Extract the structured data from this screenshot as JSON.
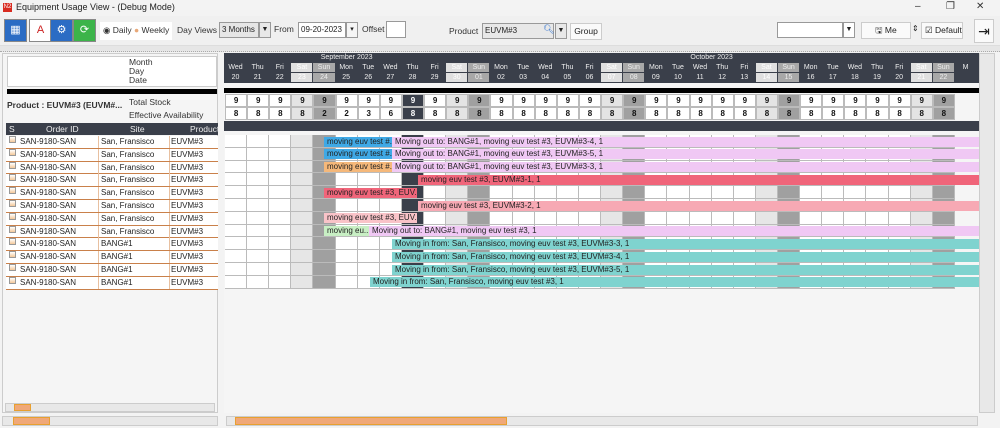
{
  "window": {
    "title": "Equipment Usage View - (Debug Mode)",
    "app_icon": "N2",
    "minimize": "–",
    "restore": "❐",
    "close": "✕"
  },
  "toolbar": {
    "icons": [
      "calendar-grid-icon",
      "presentation-icon",
      "settings-money-icon",
      "refresh-icon"
    ],
    "view_mode": {
      "options": [
        "Daily",
        "Weekly"
      ],
      "selected": "Daily"
    },
    "day_views_label": "Day Views",
    "day_views_value": "3 Months",
    "from_label": "From",
    "from_value": "09-20-2023",
    "offset_label": "Offset",
    "offset_value": "",
    "product_label": "Product",
    "product_value": "EUVM#3",
    "group_label": "Group",
    "preset_value": "",
    "me_label": "Me",
    "default_label": "Default",
    "default_checked": true
  },
  "header_labels": {
    "month": "Month",
    "day": "Day",
    "date": "Date"
  },
  "product_info": {
    "label": "Product : EUVM#3 (EUVM#...",
    "total_stock": "Total Stock",
    "effective_availability": "Effective Availability"
  },
  "table": {
    "columns": [
      "S",
      "Order ID",
      "Site",
      "Product"
    ],
    "rows": [
      [
        "SAN-9180-SAN",
        "San, Fransisco",
        "EUVM#3"
      ],
      [
        "SAN-9180-SAN",
        "San, Fransisco",
        "EUVM#3"
      ],
      [
        "SAN-9180-SAN",
        "San, Fransisco",
        "EUVM#3"
      ],
      [
        "SAN-9180-SAN",
        "San, Fransisco",
        "EUVM#3"
      ],
      [
        "SAN-9180-SAN",
        "San, Fransisco",
        "EUVM#3"
      ],
      [
        "SAN-9180-SAN",
        "San, Fransisco",
        "EUVM#3"
      ],
      [
        "SAN-9180-SAN",
        "San, Fransisco",
        "EUVM#3"
      ],
      [
        "SAN-9180-SAN",
        "San, Fransisco",
        "EUVM#3"
      ],
      [
        "SAN-9180-SAN",
        "BANG#1",
        "EUVM#3"
      ],
      [
        "SAN-9180-SAN",
        "BANG#1",
        "EUVM#3"
      ],
      [
        "SAN-9180-SAN",
        "BANG#1",
        "EUVM#3"
      ],
      [
        "SAN-9180-SAN",
        "BANG#1",
        "EUVM#3"
      ]
    ]
  },
  "calendar": {
    "months": [
      "September 2023",
      "October 2023"
    ],
    "days": [
      "Wed",
      "Thu",
      "Fri",
      "Sat",
      "Sun",
      "Mon",
      "Tue",
      "Wed",
      "Thu",
      "Fri",
      "Sat",
      "Sun",
      "Mon",
      "Tue",
      "Wed",
      "Thu",
      "Fri",
      "Sat",
      "Sun",
      "Mon",
      "Tue",
      "Wed",
      "Thu",
      "Fri",
      "Sat",
      "Sun",
      "Mon",
      "Tue",
      "Wed",
      "Thu",
      "Fri",
      "Sat",
      "Sun",
      "M"
    ],
    "dates": [
      "20",
      "21",
      "22",
      "23",
      "24",
      "25",
      "26",
      "27",
      "28",
      "29",
      "30",
      "01",
      "02",
      "03",
      "04",
      "05",
      "06",
      "07",
      "08",
      "09",
      "10",
      "11",
      "12",
      "13",
      "14",
      "15",
      "16",
      "17",
      "18",
      "19",
      "20",
      "21",
      "22",
      ""
    ],
    "total_stock": [
      9,
      9,
      9,
      9,
      9,
      9,
      9,
      9,
      9,
      9,
      9,
      9,
      9,
      9,
      9,
      9,
      9,
      9,
      9,
      9,
      9,
      9,
      9,
      9,
      9,
      9,
      9,
      9,
      9,
      9,
      9,
      9,
      9
    ],
    "effective_availability": [
      8,
      8,
      8,
      8,
      2,
      2,
      3,
      6,
      8,
      8,
      8,
      8,
      8,
      8,
      8,
      8,
      8,
      8,
      8,
      8,
      8,
      8,
      8,
      8,
      8,
      8,
      8,
      8,
      8,
      8,
      8,
      8,
      8
    ]
  },
  "bars": [
    [
      {
        "label": "moving euv test #...",
        "color": "#3fa9e6"
      },
      {
        "label": "Moving out to: BANG#1, moving euv test #3, EUVM#3-4, 1",
        "color": "#f0c8f4"
      }
    ],
    [
      {
        "label": "moving euv test #...",
        "color": "#3fa9e6"
      },
      {
        "label": "Moving out to: BANG#1, moving euv test #3, EUVM#3-5, 1",
        "color": "#f0c8f4"
      }
    ],
    [
      {
        "label": "moving euv test #...",
        "color": "#f5b87a"
      },
      {
        "label": "Moving out to: BANG#1, moving euv test #3, EUVM#3-3, 1",
        "color": "#f0c8f4"
      }
    ],
    [
      {
        "label": "moving euv test #3, EUVM#3-1, 1",
        "color": "#f0657a"
      }
    ],
    [
      {
        "label": "moving euv test #3, EUV...",
        "color": "#f0657a"
      }
    ],
    [
      {
        "label": "moving euv test #3, EUVM#3-2, 1",
        "color": "#f7a9b4"
      }
    ],
    [
      {
        "label": "moving euv test #3, EUV...",
        "color": "#f9c3c8"
      }
    ],
    [
      {
        "label": "moving eu...",
        "color": "#c8efc4"
      },
      {
        "label": "Moving out to: BANG#1, moving euv test #3, 1",
        "color": "#f0c8f4"
      }
    ],
    [
      {
        "label": "Moving in from: San, Fransisco, moving euv test #3, EUVM#3-3, 1",
        "color": "#7fd3cf"
      }
    ],
    [
      {
        "label": "Moving in from: San, Fransisco, moving euv test #3, EUVM#3-4, 1",
        "color": "#7fd3cf"
      }
    ],
    [
      {
        "label": "Moving in from: San, Fransisco, moving euv test #3, EUVM#3-5, 1",
        "color": "#7fd3cf"
      }
    ],
    [
      {
        "label": "Moving in from: San, Fransisco, moving euv test #3, 1",
        "color": "#7fd3cf"
      }
    ]
  ],
  "scroll": {
    "left_position": 0.05,
    "right_position": 0.35
  }
}
